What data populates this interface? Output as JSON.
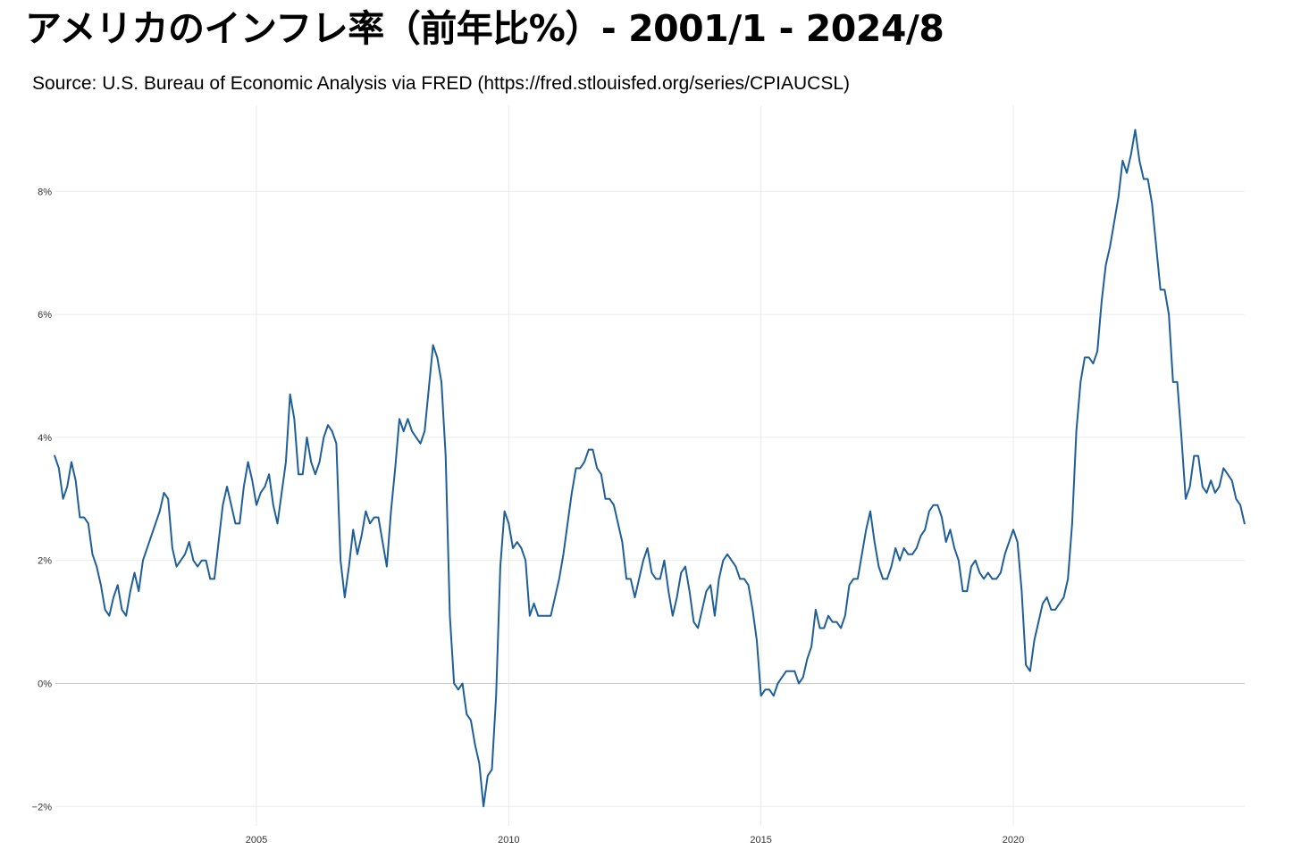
{
  "title": "アメリカのインフレ率（前年比%）- 2001/1 - 2024/8",
  "subtitle": "Source: U.S. Bureau of Economic Analysis via FRED (https://fred.stlouisfed.org/series/CPIAUCSL)",
  "chart_data": {
    "type": "line",
    "title": "アメリカのインフレ率（前年比%）- 2001/1 - 2024/8",
    "subtitle": "Source: U.S. Bureau of Economic Analysis via FRED (https://fred.stlouisfed.org/series/CPIAUCSL)",
    "xlabel": "",
    "ylabel": "",
    "x_start": "2001-01",
    "x_end": "2024-08",
    "x_ticks": [
      "2005",
      "2010",
      "2015",
      "2020"
    ],
    "y_ticks": [
      "−2%",
      "0%",
      "2%",
      "4%",
      "6%",
      "8%"
    ],
    "ylim": [
      -2.0,
      9.0
    ],
    "grid": true,
    "legend": "none",
    "line_color": "#1f5f99",
    "grid_color": "#ebebeb",
    "zero_line_color": "#c8c8c8",
    "series": [
      {
        "values": [
          3.7,
          3.5,
          3.0,
          3.2,
          3.6,
          3.3,
          2.7,
          2.7,
          2.6,
          2.1,
          1.9,
          1.6,
          1.2,
          1.1,
          1.4,
          1.6,
          1.2,
          1.1,
          1.5,
          1.8,
          1.5,
          2.0,
          2.2,
          2.4,
          2.6,
          2.8,
          3.1,
          3.0,
          2.2,
          1.9,
          2.0,
          2.1,
          2.3,
          2.0,
          1.9,
          2.0,
          2.0,
          1.7,
          1.7,
          2.3,
          2.9,
          3.2,
          2.9,
          2.6,
          2.6,
          3.2,
          3.6,
          3.3,
          2.9,
          3.1,
          3.2,
          3.4,
          2.9,
          2.6,
          3.1,
          3.6,
          4.7,
          4.3,
          3.4,
          3.4,
          4.0,
          3.6,
          3.4,
          3.6,
          4.0,
          4.2,
          4.1,
          3.9,
          2.0,
          1.4,
          1.9,
          2.5,
          2.1,
          2.4,
          2.8,
          2.6,
          2.7,
          2.7,
          2.3,
          1.9,
          2.8,
          3.5,
          4.3,
          4.1,
          4.3,
          4.1,
          4.0,
          3.9,
          4.1,
          4.8,
          5.5,
          5.3,
          4.9,
          3.7,
          1.1,
          0.0,
          -0.1,
          0.0,
          -0.5,
          -0.6,
          -1.0,
          -1.3,
          -2.0,
          -1.5,
          -1.4,
          -0.2,
          1.9,
          2.8,
          2.6,
          2.2,
          2.3,
          2.2,
          2.0,
          1.1,
          1.3,
          1.1,
          1.1,
          1.1,
          1.1,
          1.4,
          1.7,
          2.1,
          2.6,
          3.1,
          3.5,
          3.5,
          3.6,
          3.8,
          3.8,
          3.5,
          3.4,
          3.0,
          3.0,
          2.9,
          2.6,
          2.3,
          1.7,
          1.7,
          1.4,
          1.7,
          2.0,
          2.2,
          1.8,
          1.7,
          1.7,
          2.0,
          1.5,
          1.1,
          1.4,
          1.8,
          1.9,
          1.5,
          1.0,
          0.9,
          1.2,
          1.5,
          1.6,
          1.1,
          1.7,
          2.0,
          2.1,
          2.0,
          1.9,
          1.7,
          1.7,
          1.6,
          1.2,
          0.7,
          -0.2,
          -0.1,
          -0.1,
          -0.2,
          0.0,
          0.1,
          0.2,
          0.2,
          0.2,
          0.0,
          0.1,
          0.4,
          0.6,
          1.2,
          0.9,
          0.9,
          1.1,
          1.0,
          1.0,
          0.9,
          1.1,
          1.6,
          1.7,
          1.7,
          2.1,
          2.5,
          2.8,
          2.3,
          1.9,
          1.7,
          1.7,
          1.9,
          2.2,
          2.0,
          2.2,
          2.1,
          2.1,
          2.2,
          2.4,
          2.5,
          2.8,
          2.9,
          2.9,
          2.7,
          2.3,
          2.5,
          2.2,
          2.0,
          1.5,
          1.5,
          1.9,
          2.0,
          1.8,
          1.7,
          1.8,
          1.7,
          1.7,
          1.8,
          2.1,
          2.3,
          2.5,
          2.3,
          1.5,
          0.3,
          0.2,
          0.7,
          1.0,
          1.3,
          1.4,
          1.2,
          1.2,
          1.3,
          1.4,
          1.7,
          2.6,
          4.1,
          4.9,
          5.3,
          5.3,
          5.2,
          5.4,
          6.2,
          6.8,
          7.1,
          7.5,
          7.9,
          8.5,
          8.3,
          8.6,
          9.0,
          8.5,
          8.2,
          8.2,
          7.8,
          7.1,
          6.4,
          6.4,
          6.0,
          4.9,
          4.9,
          4.0,
          3.0,
          3.2,
          3.7,
          3.7,
          3.2,
          3.1,
          3.3,
          3.1,
          3.2,
          3.5,
          3.4,
          3.3,
          3.0,
          2.9,
          2.6
        ]
      }
    ]
  }
}
